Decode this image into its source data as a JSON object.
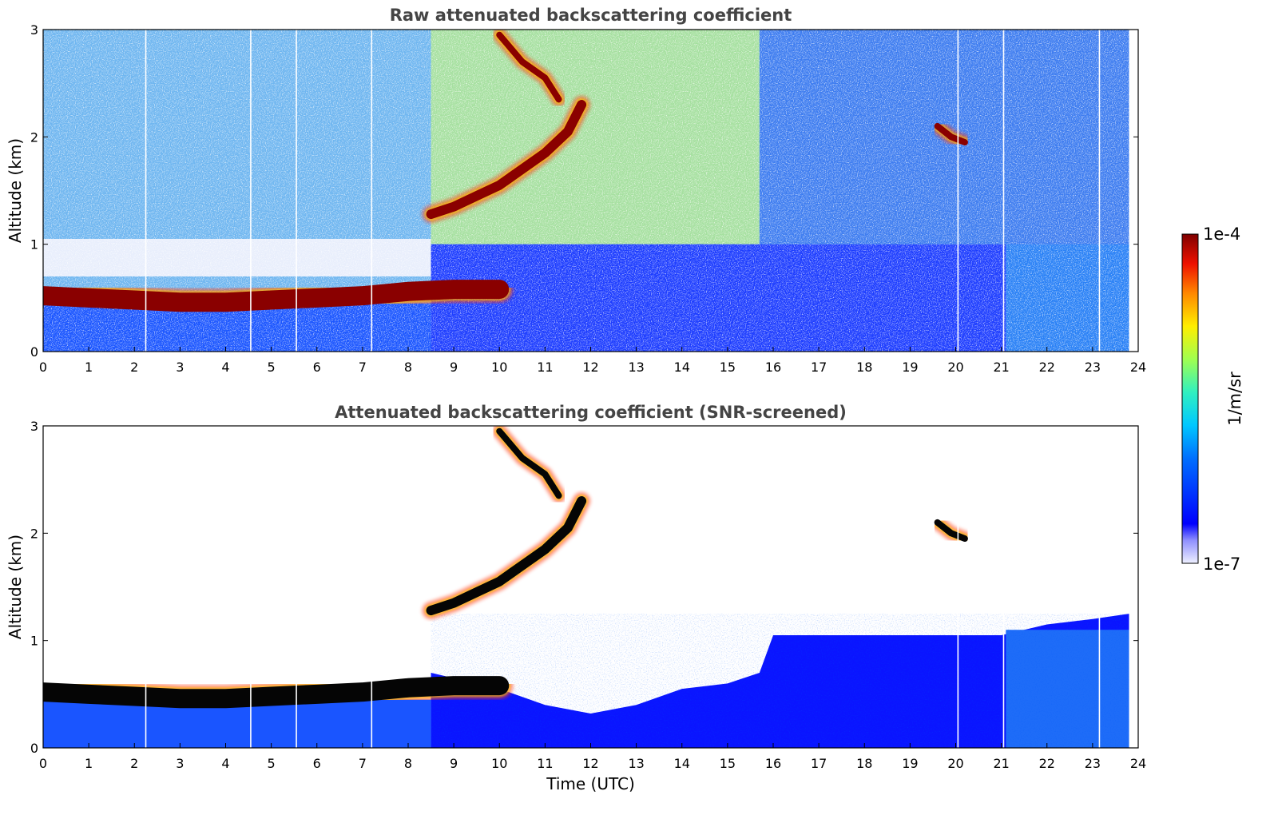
{
  "figure": {
    "colorbar": {
      "label": "1/m/sr",
      "max_label": "1e-4",
      "min_label": "1e-7",
      "colormap": "jet-with-white-low",
      "vmin": 1e-07,
      "vmax": 0.0001,
      "scale": "log"
    }
  },
  "chart_data": [
    {
      "type": "heatmap",
      "title": "Raw attenuated backscattering coefficient",
      "xlabel": "",
      "ylabel": "Altitude (km)",
      "xlim": [
        0,
        24
      ],
      "ylim": [
        0,
        3
      ],
      "x_ticks": [
        "0",
        "1",
        "2",
        "3",
        "4",
        "5",
        "6",
        "7",
        "8",
        "9",
        "10",
        "11",
        "12",
        "13",
        "14",
        "15",
        "16",
        "17",
        "18",
        "19",
        "20",
        "21",
        "22",
        "23",
        "24"
      ],
      "y_ticks": [
        "0",
        "1",
        "2",
        "3"
      ],
      "data_end_hour": 23.8,
      "gap_hours": [
        2.25,
        4.55,
        5.55,
        7.2,
        20.05,
        21.05,
        23.15
      ],
      "layers": [
        {
          "feature": "boundary-layer top",
          "hours": [
            0,
            1,
            2,
            3,
            4,
            5,
            6,
            7,
            8,
            9,
            10
          ],
          "altitude_km": [
            0.52,
            0.5,
            0.48,
            0.46,
            0.46,
            0.48,
            0.5,
            0.52,
            0.56,
            0.58,
            0.58
          ]
        },
        {
          "feature": "rising aerosol layer",
          "hours": [
            8.5,
            9.0,
            9.5,
            10.0,
            10.5,
            11.0,
            11.5,
            11.8
          ],
          "altitude_km": [
            1.28,
            1.35,
            1.45,
            1.55,
            1.7,
            1.85,
            2.05,
            2.3
          ]
        },
        {
          "feature": "upper aerosol filament",
          "hours": [
            10.0,
            10.5,
            11.0,
            11.3
          ],
          "altitude_km": [
            2.95,
            2.7,
            2.55,
            2.35
          ]
        },
        {
          "feature": "isolated layer",
          "hours": [
            19.6,
            19.9,
            20.2
          ],
          "altitude_km": [
            2.1,
            2.0,
            1.95
          ]
        }
      ]
    },
    {
      "type": "heatmap",
      "title": "Attenuated backscattering coefficient (SNR-screened)",
      "xlabel": "Time (UTC)",
      "ylabel": "Altitude (km)",
      "xlim": [
        0,
        24
      ],
      "ylim": [
        0,
        3
      ],
      "x_ticks": [
        "0",
        "1",
        "2",
        "3",
        "4",
        "5",
        "6",
        "7",
        "8",
        "9",
        "10",
        "11",
        "12",
        "13",
        "14",
        "15",
        "16",
        "17",
        "18",
        "19",
        "20",
        "21",
        "22",
        "23",
        "24"
      ],
      "y_ticks": [
        "0",
        "1",
        "2",
        "3"
      ],
      "data_end_hour": 23.8,
      "gap_hours": [
        2.25,
        4.55,
        5.55,
        7.2,
        20.05,
        21.05,
        23.15
      ],
      "screened_top": {
        "hours": [
          8.5,
          10,
          11,
          12,
          13,
          14,
          15,
          15.7,
          16,
          18,
          20,
          21,
          22,
          23,
          23.8
        ],
        "altitude_km": [
          0.7,
          0.55,
          0.4,
          0.32,
          0.4,
          0.55,
          0.6,
          0.7,
          1.05,
          1.05,
          1.05,
          1.05,
          1.15,
          1.2,
          1.25
        ]
      }
    }
  ]
}
